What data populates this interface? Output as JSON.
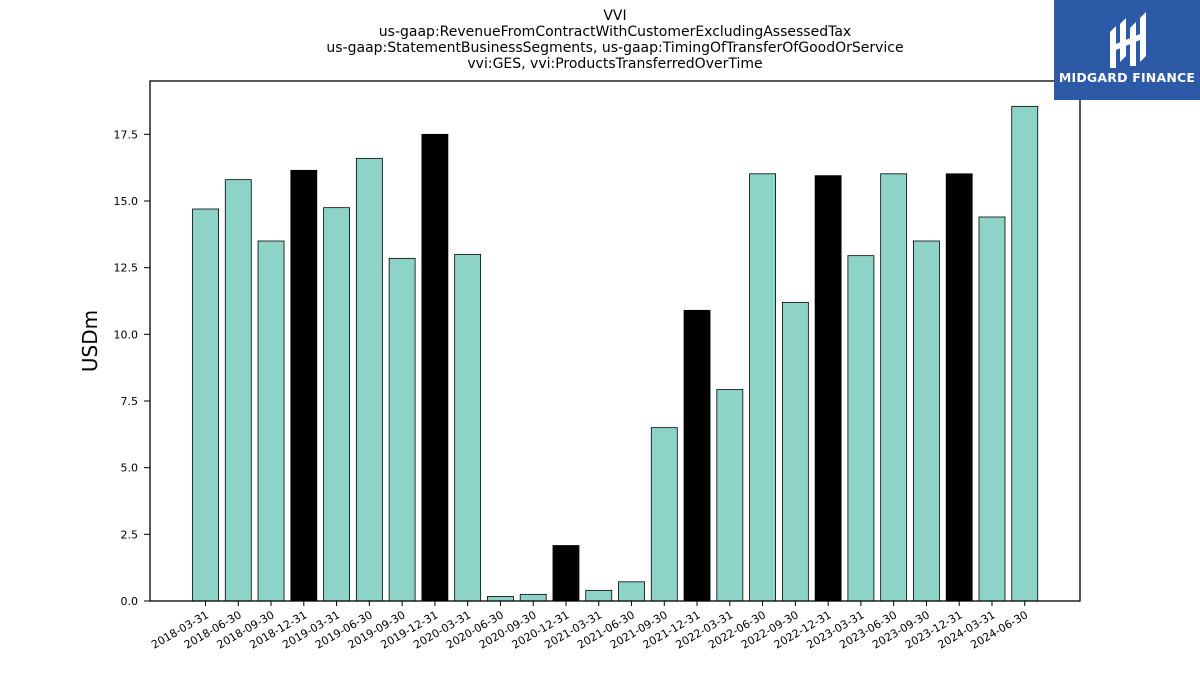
{
  "brand": {
    "name": "MIDGARD FINANCE",
    "bg_color": "#2c5aa7",
    "icon": "midgard-logo-icon"
  },
  "chart_data": {
    "type": "bar",
    "title_lines": [
      "VVI",
      "us-gaap:RevenueFromContractWithCustomerExcludingAssessedTax",
      "us-gaap:StatementBusinessSegments, us-gaap:TimingOfTransferOfGoodOrService",
      "vvi:GES, vvi:ProductsTransferredOverTime"
    ],
    "xlabel": "",
    "ylabel": "USDm",
    "ylim": [
      0,
      19.5
    ],
    "yticks": [
      "0.0",
      "2.5",
      "5.0",
      "7.5",
      "10.0",
      "12.5",
      "15.0",
      "17.5"
    ],
    "grid": false,
    "colors": {
      "quarter": "#8dd3c7",
      "year_end": "#000000",
      "edge": "#000000"
    },
    "categories": [
      "2018-03-31",
      "2018-06-30",
      "2018-09-30",
      "2018-12-31",
      "2019-03-31",
      "2019-06-30",
      "2019-09-30",
      "2019-12-31",
      "2020-03-31",
      "2020-06-30",
      "2020-09-30",
      "2020-12-31",
      "2021-03-31",
      "2021-06-30",
      "2021-09-30",
      "2021-12-31",
      "2022-03-31",
      "2022-06-30",
      "2022-09-30",
      "2022-12-31",
      "2023-03-31",
      "2023-06-30",
      "2023-09-30",
      "2023-12-31",
      "2024-03-31",
      "2024-06-30"
    ],
    "values": [
      14.7,
      15.8,
      13.5,
      16.15,
      14.75,
      16.6,
      12.85,
      17.5,
      13.0,
      0.17,
      0.25,
      2.08,
      0.4,
      0.72,
      6.5,
      10.9,
      7.93,
      16.02,
      11.2,
      15.95,
      12.95,
      16.02,
      13.5,
      16.02,
      14.4,
      18.55
    ]
  }
}
